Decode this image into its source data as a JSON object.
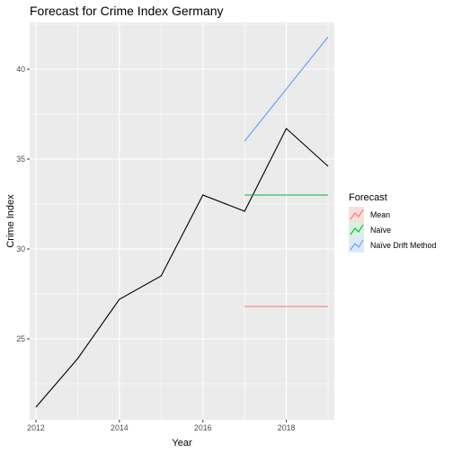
{
  "chart_data": {
    "type": "line",
    "title": "Forecast for Crime Index Germany",
    "xlabel": "Year",
    "ylabel": "Crime Index",
    "xlim": [
      2011.85,
      2019.15
    ],
    "ylim": [
      20.5,
      42.6
    ],
    "x_ticks": [
      2012,
      2014,
      2016,
      2018
    ],
    "x_tick_labels": [
      "2012",
      "2014",
      "2016",
      "2018"
    ],
    "y_ticks": [
      25,
      30,
      35,
      40
    ],
    "y_tick_labels": [
      "25",
      "30",
      "35",
      "40"
    ],
    "grid": true,
    "legend_position": "right",
    "legend_title": "Forecast",
    "actual": {
      "color": "#000000",
      "x": [
        2012,
        2013,
        2014,
        2015,
        2016,
        2017,
        2018,
        2019
      ],
      "y": [
        21.2,
        23.9,
        27.2,
        28.5,
        33.0,
        32.1,
        36.7,
        34.6
      ]
    },
    "series": [
      {
        "name": "Mean",
        "color": "#F8766D",
        "x": [
          2017,
          2019
        ],
        "y": [
          26.8,
          26.8
        ]
      },
      {
        "name": "Naïve",
        "color": "#00BA38",
        "x": [
          2017,
          2019
        ],
        "y": [
          33.0,
          33.0
        ]
      },
      {
        "name": "Naïve Drift Method",
        "color": "#619CFF",
        "x": [
          2017,
          2019
        ],
        "y": [
          36.0,
          41.8
        ]
      }
    ]
  }
}
